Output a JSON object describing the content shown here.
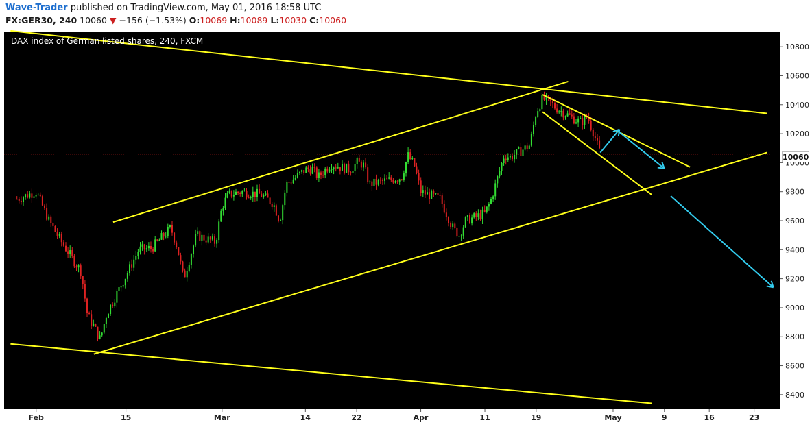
{
  "header": {
    "author": "Wave-Trader",
    "published_text": "published on TradingView.com, May 01, 2016 18:58 UTC",
    "symbol_text": "FX:GER30, 240",
    "last_value": "10060",
    "change_arrow": "▼",
    "change_text": "−156 (−1.53%)",
    "o_label": "O:",
    "o_value": "10069",
    "h_label": "H:",
    "h_value": "10089",
    "l_label": "L:",
    "l_value": "10030",
    "c_label": "C:",
    "c_value": "10060"
  },
  "chart_data": {
    "type": "candlestick",
    "title": "DAX index of German listed shares, 240, FXCM",
    "ylim": [
      8300,
      10900
    ],
    "y_ticks": [
      10800,
      10600,
      10400,
      10200,
      10000,
      9800,
      9600,
      9400,
      9200,
      9000,
      8800,
      8600,
      8400
    ],
    "x_ticks": [
      "Feb",
      "15",
      "Mar",
      "14",
      "22",
      "Apr",
      "11",
      "19",
      "May",
      "9",
      "16",
      "23"
    ],
    "x_tick_dates": [
      "2016-02-01",
      "2016-02-15",
      "2016-03-01",
      "2016-03-14",
      "2016-03-22",
      "2016-04-01",
      "2016-04-11",
      "2016-04-19",
      "2016-05-01",
      "2016-05-09",
      "2016-05-16",
      "2016-05-23"
    ],
    "last_price": 10060,
    "last_price_label": "10060",
    "grid": false,
    "price_path": [
      [
        "2016-01-29",
        9750
      ],
      [
        "2016-02-01",
        9800
      ],
      [
        "2016-02-03",
        9600
      ],
      [
        "2016-02-05",
        9450
      ],
      [
        "2016-02-08",
        9250
      ],
      [
        "2016-02-09",
        8950
      ],
      [
        "2016-02-10",
        8870
      ],
      [
        "2016-02-11",
        8780
      ],
      [
        "2016-02-12",
        8960
      ],
      [
        "2016-02-15",
        9220
      ],
      [
        "2016-02-17",
        9400
      ],
      [
        "2016-02-19",
        9410
      ],
      [
        "2016-02-22",
        9550
      ],
      [
        "2016-02-23",
        9420
      ],
      [
        "2016-02-24",
        9200
      ],
      [
        "2016-02-25",
        9350
      ],
      [
        "2016-02-26",
        9500
      ],
      [
        "2016-02-29",
        9450
      ],
      [
        "2016-03-01",
        9700
      ],
      [
        "2016-03-02",
        9780
      ],
      [
        "2016-03-04",
        9800
      ],
      [
        "2016-03-07",
        9780
      ],
      [
        "2016-03-09",
        9720
      ],
      [
        "2016-03-10",
        9600
      ],
      [
        "2016-03-11",
        9850
      ],
      [
        "2016-03-14",
        9950
      ],
      [
        "2016-03-15",
        9960
      ],
      [
        "2016-03-16",
        9900
      ],
      [
        "2016-03-17",
        9950
      ],
      [
        "2016-03-18",
        9990
      ],
      [
        "2016-03-21",
        9950
      ],
      [
        "2016-03-22",
        10000
      ],
      [
        "2016-03-23",
        9990
      ],
      [
        "2016-03-24",
        9850
      ],
      [
        "2016-03-29",
        9900
      ],
      [
        "2016-03-30",
        10050
      ],
      [
        "2016-03-31",
        9980
      ],
      [
        "2016-04-01",
        9800
      ],
      [
        "2016-04-04",
        9750
      ],
      [
        "2016-04-06",
        9550
      ],
      [
        "2016-04-07",
        9500
      ],
      [
        "2016-04-08",
        9600
      ],
      [
        "2016-04-11",
        9650
      ],
      [
        "2016-04-12",
        9750
      ],
      [
        "2016-04-13",
        9900
      ],
      [
        "2016-04-14",
        10050
      ],
      [
        "2016-04-15",
        10040
      ],
      [
        "2016-04-18",
        10120
      ],
      [
        "2016-04-19",
        10350
      ],
      [
        "2016-04-20",
        10440
      ],
      [
        "2016-04-21",
        10420
      ],
      [
        "2016-04-22",
        10380
      ],
      [
        "2016-04-25",
        10300
      ],
      [
        "2016-04-26",
        10280
      ],
      [
        "2016-04-27",
        10320
      ],
      [
        "2016-04-28",
        10200
      ],
      [
        "2016-04-29",
        10060
      ]
    ],
    "trendlines": [
      {
        "name": "channel-upper",
        "color": "#ffff1a",
        "points": [
          [
            "2016-02-13",
            9590
          ],
          [
            "2016-04-24",
            10560
          ]
        ]
      },
      {
        "name": "channel-lower",
        "color": "#ffff1a",
        "points": [
          [
            "2016-02-10",
            8680
          ],
          [
            "2016-05-25",
            10070
          ]
        ]
      },
      {
        "name": "resistance-line",
        "color": "#ffff1a",
        "points": [
          [
            "2016-01-28",
            10910
          ],
          [
            "2016-05-25",
            10340
          ]
        ]
      },
      {
        "name": "support-line",
        "color": "#ffff1a",
        "points": [
          [
            "2016-01-28",
            8750
          ],
          [
            "2016-05-07",
            8340
          ]
        ]
      },
      {
        "name": "wedge-upper",
        "color": "#ffff1a",
        "points": [
          [
            "2016-04-20",
            10470
          ],
          [
            "2016-05-13",
            9970
          ]
        ]
      },
      {
        "name": "wedge-lower",
        "color": "#ffff1a",
        "points": [
          [
            "2016-04-20",
            10350
          ],
          [
            "2016-05-07",
            9780
          ]
        ]
      }
    ],
    "projection_arrows": [
      {
        "name": "arrow-up",
        "color": "#33ccee",
        "from": [
          "2016-04-29",
          10070
        ],
        "to": [
          "2016-05-02",
          10230
        ]
      },
      {
        "name": "arrow-down-short",
        "color": "#33ccee",
        "from": [
          "2016-05-02",
          10210
        ],
        "to": [
          "2016-05-09",
          9960
        ]
      },
      {
        "name": "arrow-down-long",
        "color": "#33ccee",
        "from": [
          "2016-05-10",
          9770
        ],
        "to": [
          "2016-05-26",
          9140
        ]
      }
    ],
    "colors": {
      "background": "#000000",
      "up": "#33dd33",
      "down": "#dd2222",
      "trendline": "#ffff1a",
      "arrow": "#33ccee",
      "price_line": "#dd2222"
    }
  }
}
